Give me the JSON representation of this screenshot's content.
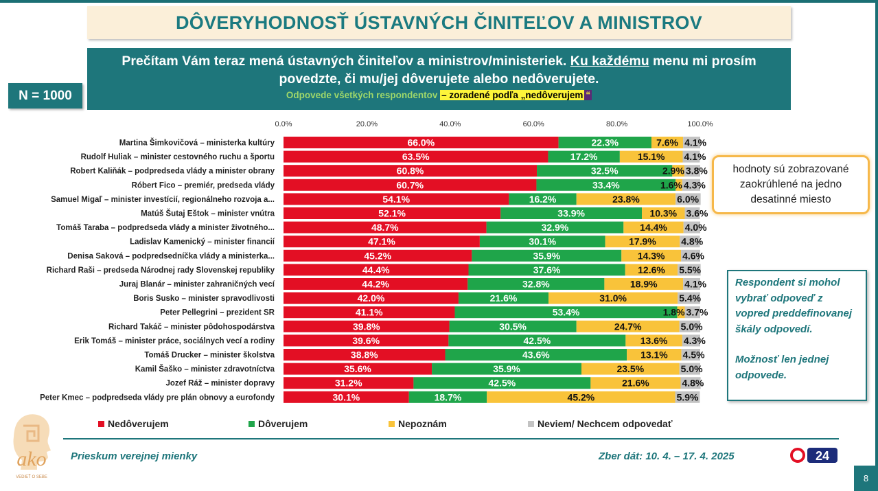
{
  "header": {
    "title": "DÔVERYHODNOSŤ ÚSTAVNÝCH ČINITEĽOV A MINISTROV",
    "question_part1": "Prečítam Vám teraz mená ústavných činiteľov a ministrov/ministeriek. ",
    "question_underlined": "Ku každému",
    "question_part2": " menu mi prosím povedzte, či mu/jej dôverujete alebo nedôverujete.",
    "sort_note_a": "Odpovede všetkých respondentov ",
    "sort_note_b": "– zoradené podľa „nedôverujem",
    "sort_note_c": "“"
  },
  "sample": {
    "label": "N = 1000"
  },
  "notes": {
    "rounding": "hodnoty sú zobrazované zaokrúhlené na jedno desatinné miesto",
    "method_1": "Respondent si mohol vybrať odpoveď z vopred preddefinovanej škály odpovedí.",
    "method_2": "Možnosť len jednej odpovede."
  },
  "footer": {
    "left": "Prieskum verejnej mienky",
    "right": "Zber dát: 10. 4. – 17. 4. 2025",
    "page": "8",
    "logo_left_text": "ako",
    "logo_left_tagline": "VEDIEŤ O SEBE",
    "logo_right_text": "24"
  },
  "colors": {
    "nedoverujem": "#e30f24",
    "doverujem": "#1fa54a",
    "nepoznam": "#f9c33a",
    "neviem": "#c3c3c3",
    "teal": "#1e767b"
  },
  "chart_data": {
    "type": "bar",
    "orientation": "horizontal",
    "stacked": true,
    "xlim": [
      0,
      100
    ],
    "x_ticks": [
      "0.0%",
      "20.0%",
      "40.0%",
      "60.0%",
      "80.0%",
      "100.0%"
    ],
    "categories": [
      "Martina Šimkovičová – ministerka kultúry",
      "Rudolf Huliak – minister cestovného ruchu a športu",
      "Robert Kaliňák – podpredseda vlády a minister obrany",
      "Róbert Fico – premiér, predseda vlády",
      "Samuel Migaľ – minister investícií, regionálneho rozvoja a...",
      "Matúš Šutaj Eštok – minister vnútra",
      "Tomáš Taraba – podpredseda vlády a minister životného...",
      "Ladislav Kamenický – minister financií",
      "Denisa Saková – podpredsedníčka vlády a ministerka...",
      "Richard Raši – predseda Národnej rady Slovenskej republiky",
      "Juraj Blanár – minister zahraničných vecí",
      "Boris Susko – minister spravodlivosti",
      "Peter Pellegrini – prezident SR",
      "Richard Takáč – minister pôdohospodárstva",
      "Erik Tomáš – minister práce, sociálnych vecí a rodiny",
      "Tomáš Drucker – minister školstva",
      "Kamil Šaško – minister zdravotníctva",
      "Jozef Ráž – minister dopravy",
      "Peter Kmec – podpredseda vlády pre plán obnovy a eurofondy"
    ],
    "series": [
      {
        "name": "Nedôverujem",
        "color": "#e30f24",
        "values": [
          66.0,
          63.5,
          60.8,
          60.7,
          54.1,
          52.1,
          48.7,
          47.1,
          45.2,
          44.4,
          44.2,
          42.0,
          41.1,
          39.8,
          39.6,
          38.8,
          35.6,
          31.2,
          30.1
        ],
        "labels": [
          "66.0%",
          "63.5%",
          "60.8%",
          "60.7%",
          "54.1%",
          "52.1%",
          "48.7%",
          "47.1%",
          "45.2%",
          "44.4%",
          "44.2%",
          "42.0%",
          "41.1%",
          "39.8%",
          "39.6%",
          "38.8%",
          "35.6%",
          "31.2%",
          "30.1%"
        ]
      },
      {
        "name": "Dôverujem",
        "color": "#1fa54a",
        "values": [
          22.3,
          17.2,
          32.5,
          33.4,
          16.2,
          33.9,
          32.9,
          30.1,
          35.9,
          37.6,
          32.8,
          21.6,
          53.4,
          30.5,
          42.5,
          43.6,
          35.9,
          42.5,
          18.7
        ],
        "labels": [
          "22.3%",
          "17.2%",
          "32.5%",
          "33.4%",
          "16.2%",
          "33.9%",
          "32.9%",
          "30.1%",
          "35.9%",
          "37.6%",
          "32.8%",
          "21.6%",
          "53.4%",
          "30.5%",
          "42.5%",
          "43.6%",
          "35.9%",
          "42.5%",
          "18.7%"
        ]
      },
      {
        "name": "Nepoznám",
        "color": "#f9c33a",
        "values": [
          7.6,
          15.1,
          2.9,
          1.6,
          23.8,
          10.3,
          14.4,
          17.9,
          14.3,
          12.6,
          18.9,
          31.0,
          1.8,
          24.7,
          13.6,
          13.1,
          23.5,
          21.6,
          45.2
        ],
        "labels": [
          "7.6%",
          "15.1%",
          "2.9%",
          "1.6%",
          "23.8%",
          "10.3%",
          "14.4%",
          "17.9%",
          "14.3%",
          "12.6%",
          "18.9%",
          "31.0%",
          "1.8%",
          "24.7%",
          "13.6%",
          "13.1%",
          "23.5%",
          "21.6%",
          "45.2%"
        ]
      },
      {
        "name": "Neviem/ Nechcem odpovedať",
        "color": "#c3c3c3",
        "values": [
          4.1,
          4.1,
          3.8,
          4.3,
          6.0,
          3.6,
          4.0,
          4.8,
          4.6,
          5.5,
          4.1,
          5.4,
          3.7,
          5.0,
          4.3,
          4.5,
          5.0,
          4.8,
          5.9
        ],
        "labels": [
          "4.1%",
          "4.1%",
          "3.8%",
          "4.3%",
          "6.0%",
          "3.6%",
          "4.0%",
          "4.8%",
          "4.6%",
          "5.5%",
          "4.1%",
          "5.4%",
          "3.7%",
          "5.0%",
          "4.3%",
          "4.5%",
          "5.0%",
          "4.8%",
          "5.9%"
        ]
      }
    ],
    "legend": [
      "Nedôverujem",
      "Dôverujem",
      "Nepoznám",
      "Neviem/ Nechcem odpovedať"
    ],
    "legend_position": "bottom"
  }
}
